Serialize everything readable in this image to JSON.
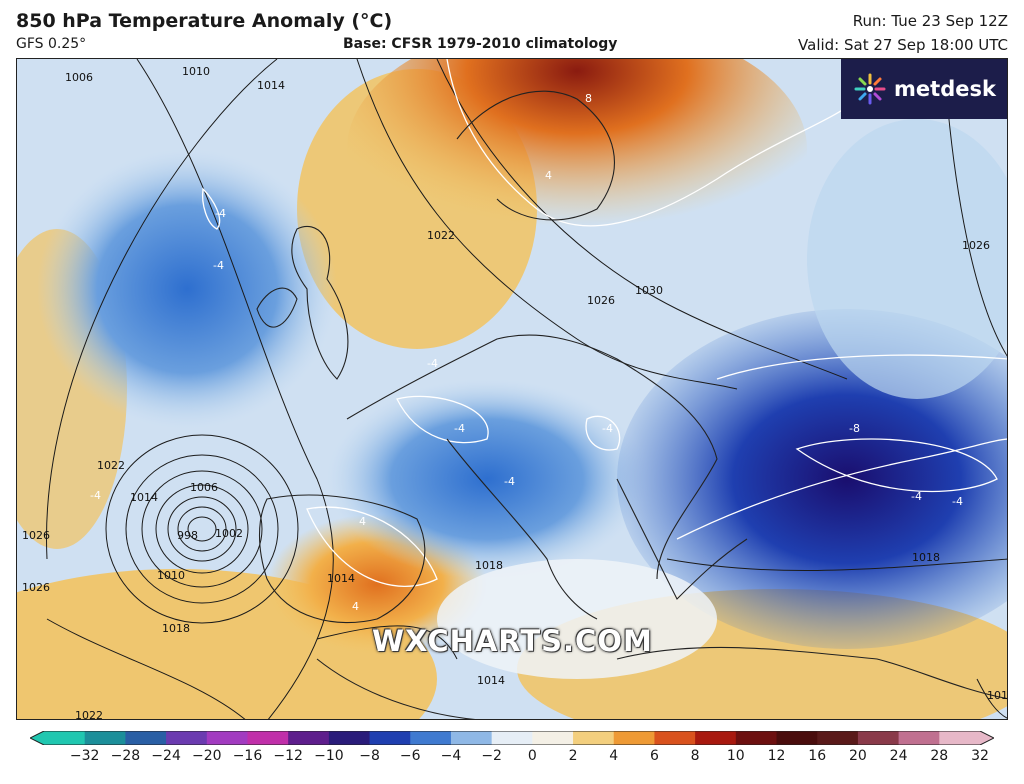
{
  "header": {
    "title": "850 hPa Temperature Anomaly (°C)",
    "model": "GFS 0.25°",
    "base": "Base: CFSR 1979-2010 climatology",
    "run": "Run: Tue 23 Sep 12Z",
    "valid": "Valid: Sat 27 Sep 18:00 UTC"
  },
  "logo": {
    "text": "metdesk",
    "icon": "metdesk-pinwheel-icon",
    "background": "#1c1d4a"
  },
  "watermark": "WXCHARTS.COM",
  "colors": {
    "cold_deep": "#1a0e6e",
    "cold": "#2e6fcf",
    "cool": "#bcd7f0",
    "neutral": "#f3f6f9",
    "warm": "#f2c361",
    "hot": "#e0701f",
    "very_hot": "#8a1b10",
    "isobar": "#1a1a1a",
    "anomaly_contour": "#ffffff"
  },
  "colorbar": {
    "ticks": [
      "−32",
      "−28",
      "−24",
      "−20",
      "−16",
      "−12",
      "−10",
      "−8",
      "−6",
      "−4",
      "−2",
      "0",
      "2",
      "4",
      "6",
      "8",
      "10",
      "12",
      "16",
      "20",
      "24",
      "28",
      "32"
    ],
    "colors": [
      "#20c7b0",
      "#1c8f9a",
      "#2a5fa5",
      "#6b3bb0",
      "#a23bc0",
      "#c02fa9",
      "#5e1e8c",
      "#2a1c7a",
      "#1f3fb0",
      "#3f7ad0",
      "#8fb8e6",
      "#e6eef6",
      "#f4f0e6",
      "#f3cf7e",
      "#ee9a35",
      "#d9521d",
      "#a8190f",
      "#6d1010",
      "#4a0d0d",
      "#5a1a1a",
      "#8a3a4a",
      "#c07090",
      "#e7b8c8"
    ]
  },
  "map_labels": {
    "isobars": [
      "1006",
      "1010",
      "1014",
      "1022",
      "1026",
      "1030",
      "1026",
      "1026",
      "1018",
      "1018",
      "1014",
      "1010",
      "1006",
      "1002",
      "998",
      "1014",
      "1018",
      "1022",
      "1026",
      "1010",
      "1022",
      "1014"
    ],
    "anomalies": [
      "8",
      "4",
      "-4",
      "-4",
      "-4",
      "-4",
      "-4",
      "-8",
      "-4",
      "-4",
      "4",
      "4",
      "-4",
      "-4"
    ]
  }
}
